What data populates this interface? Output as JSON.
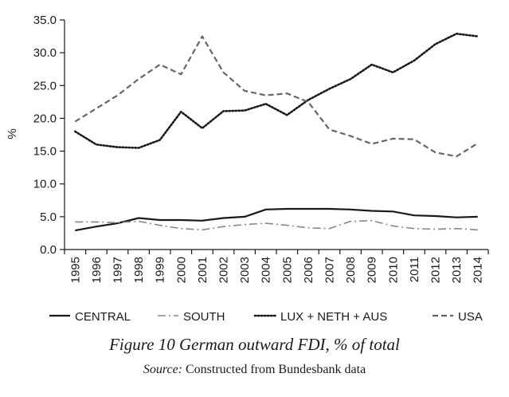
{
  "chart_data": {
    "type": "line",
    "ylabel": "%",
    "xlabel": "",
    "ylim": [
      0,
      35
    ],
    "yticks": [
      "0.0",
      "5.0",
      "10.0",
      "15.0",
      "20.0",
      "25.0",
      "30.0",
      "35.0"
    ],
    "x": [
      "1995",
      "1996",
      "1997",
      "1998",
      "1999",
      "2000",
      "2001",
      "2002",
      "2003",
      "2004",
      "2005",
      "2006",
      "2007",
      "2008",
      "2009",
      "2010",
      "2011",
      "2012",
      "2013",
      "2014"
    ],
    "grid": false,
    "legend_position": "bottom",
    "series": [
      {
        "name": "CENTRAL",
        "color": "#1a1a1a",
        "style": "solid",
        "values": [
          2.9,
          3.5,
          4.0,
          4.8,
          4.5,
          4.5,
          4.4,
          4.8,
          5.0,
          6.1,
          6.2,
          6.2,
          6.2,
          6.1,
          5.9,
          5.8,
          5.2,
          5.1,
          4.9,
          5.0
        ]
      },
      {
        "name": "SOUTH",
        "color": "#888888",
        "style": "dashdot",
        "values": [
          4.2,
          4.2,
          4.1,
          4.3,
          3.7,
          3.2,
          3.0,
          3.5,
          3.8,
          4.0,
          3.7,
          3.3,
          3.2,
          4.3,
          4.4,
          3.6,
          3.2,
          3.1,
          3.2,
          3.0
        ]
      },
      {
        "name": "LUX + NETH + AUS",
        "color": "#1a1a1a",
        "style": "dotted",
        "values": [
          18.0,
          16.0,
          15.6,
          15.5,
          16.7,
          21.0,
          18.5,
          21.1,
          21.2,
          22.2,
          20.5,
          22.8,
          24.5,
          26.0,
          28.2,
          27.0,
          28.8,
          31.3,
          32.9,
          32.5
        ]
      },
      {
        "name": "USA",
        "color": "#666666",
        "style": "dashed",
        "values": [
          19.5,
          21.5,
          23.5,
          26.0,
          28.2,
          26.7,
          32.5,
          27.0,
          24.2,
          23.5,
          23.8,
          22.5,
          18.3,
          17.3,
          16.1,
          16.9,
          16.8,
          14.8,
          14.2,
          16.2
        ]
      }
    ]
  },
  "figure": {
    "title": "Figure 10  German outward FDI, % of total",
    "source_label": "Source:",
    "source_text": " Constructed from Bundesbank data"
  }
}
